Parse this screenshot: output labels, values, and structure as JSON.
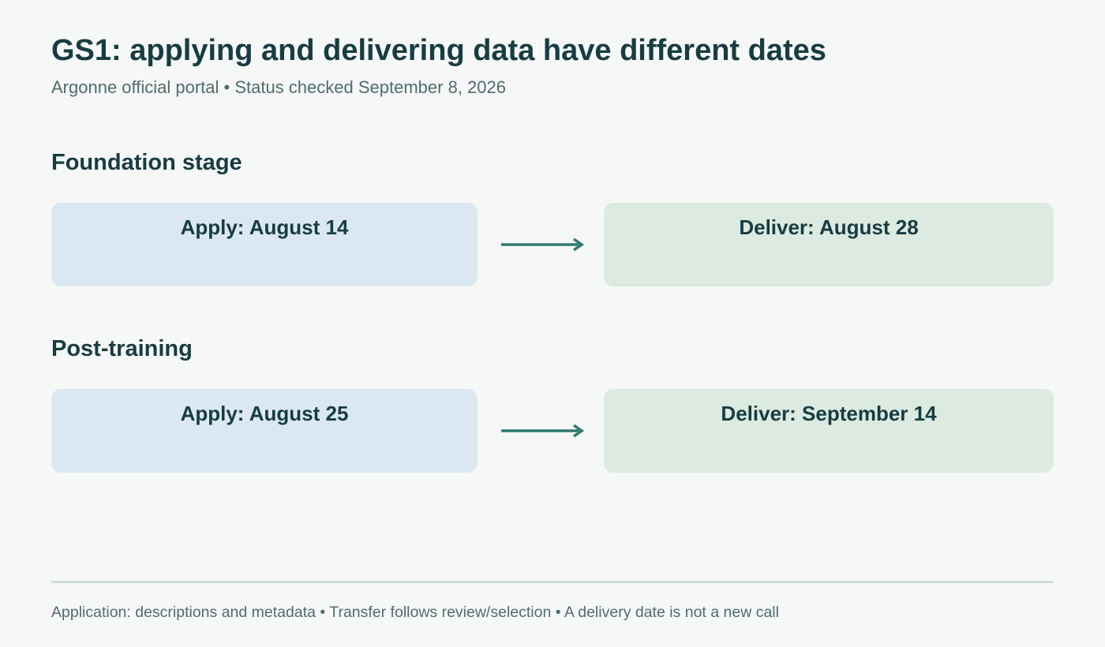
{
  "header": {
    "title": "GS1: applying and delivering data have different dates",
    "subtitle": "Argonne official portal • Status checked September 8, 2026"
  },
  "sections": [
    {
      "heading": "Foundation stage",
      "apply_label": "Apply: August 14",
      "deliver_label": "Deliver: August 28"
    },
    {
      "heading": "Post-training",
      "apply_label": "Apply: August 25",
      "deliver_label": "Deliver: September 14"
    }
  ],
  "footer": {
    "note": "Application: descriptions and metadata • Transfer follows review/selection • A delivery date is not a new call"
  },
  "colors": {
    "title_text": "#173c42",
    "muted_text": "#4f6b6e",
    "apply_box_fill": "#dbe8f1",
    "deliver_box_fill": "#dceae1",
    "arrow": "#2f7a6e",
    "divider": "#cfdcdc",
    "background": "#f6f8f7"
  }
}
